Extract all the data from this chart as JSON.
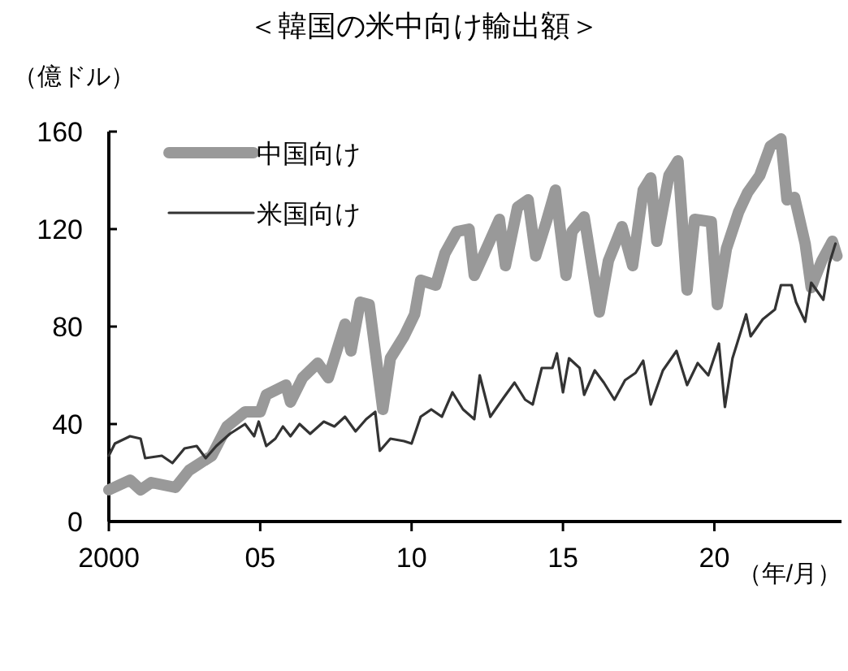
{
  "chart_data": {
    "type": "line",
    "title": "＜韓国の米中向け輸出額＞",
    "ylabel": "（億ドル）",
    "xlabel": "（年/月）",
    "xlim": [
      2000,
      2024.2
    ],
    "xticks": [
      {
        "value": 2000,
        "label": "2000"
      },
      {
        "value": 2005,
        "label": "05"
      },
      {
        "value": 2010,
        "label": "10"
      },
      {
        "value": 2015,
        "label": "15"
      },
      {
        "value": 2020,
        "label": "20"
      }
    ],
    "ylim": [
      0,
      160
    ],
    "yticks": [
      0,
      40,
      80,
      120,
      160
    ],
    "grid": false,
    "legend": "top left",
    "line_style": "solid",
    "series": [
      {
        "name": "中国向け",
        "color": "#999999",
        "x": [
          2000.0,
          2000.7,
          2001.05,
          2001.4,
          2002.2,
          2002.65,
          2003.4,
          2003.9,
          2004.5,
          2005.0,
          2005.2,
          2005.85,
          2006.0,
          2006.4,
          2006.9,
          2007.25,
          2007.45,
          2007.8,
          2008.0,
          2008.3,
          2008.6,
          2008.8,
          2009.05,
          2009.3,
          2009.75,
          2010.1,
          2010.3,
          2010.8,
          2011.1,
          2011.5,
          2011.9,
          2012.07,
          2012.4,
          2012.9,
          2013.1,
          2013.5,
          2013.85,
          2014.1,
          2014.45,
          2014.75,
          2015.1,
          2015.3,
          2015.7,
          2016.2,
          2016.5,
          2016.95,
          2017.3,
          2017.65,
          2017.9,
          2018.1,
          2018.5,
          2018.8,
          2019.1,
          2019.35,
          2019.9,
          2020.1,
          2020.4,
          2020.8,
          2021.1,
          2021.5,
          2021.85,
          2022.2,
          2022.4,
          2022.65,
          2023.0,
          2023.2,
          2023.55,
          2023.9,
          2024.05
        ],
        "values": [
          13,
          17,
          13,
          16,
          14,
          21,
          27,
          39,
          45,
          45,
          52,
          56,
          49,
          59,
          65,
          59,
          67,
          81,
          70,
          90,
          89,
          70,
          46,
          67,
          76,
          85,
          99,
          97,
          110,
          119,
          120,
          101,
          110,
          124,
          105,
          129,
          132,
          109,
          123,
          136,
          101,
          119,
          125,
          86,
          107,
          121,
          105,
          136,
          141,
          115,
          142,
          148,
          95,
          124,
          123,
          89,
          112,
          127,
          135,
          142,
          154,
          157,
          132,
          133,
          114,
          96,
          107,
          115,
          109
        ]
      },
      {
        "name": "米国向け",
        "color": "#333333",
        "x": [
          2000.0,
          2000.2,
          2000.7,
          2001.05,
          2001.2,
          2001.75,
          2002.1,
          2002.5,
          2002.9,
          2003.2,
          2003.55,
          2004.0,
          2004.5,
          2004.8,
          2004.95,
          2005.2,
          2005.5,
          2005.75,
          2006.0,
          2006.3,
          2006.65,
          2007.1,
          2007.45,
          2007.8,
          2008.15,
          2008.5,
          2008.8,
          2008.95,
          2009.3,
          2009.75,
          2010.0,
          2010.3,
          2010.65,
          2011.0,
          2011.35,
          2011.7,
          2012.07,
          2012.25,
          2012.6,
          2013.05,
          2013.4,
          2013.75,
          2014.0,
          2014.3,
          2014.65,
          2014.8,
          2015.0,
          2015.2,
          2015.55,
          2015.7,
          2016.05,
          2016.35,
          2016.7,
          2017.05,
          2017.4,
          2017.65,
          2017.9,
          2018.3,
          2018.75,
          2019.1,
          2019.45,
          2019.8,
          2020.15,
          2020.35,
          2020.6,
          2021.05,
          2021.2,
          2021.6,
          2022.0,
          2022.2,
          2022.55,
          2022.7,
          2023.0,
          2023.2,
          2023.6,
          2023.8,
          2024.0
        ],
        "values": [
          27,
          32,
          35,
          34,
          26,
          27,
          24,
          30,
          31,
          26,
          31,
          36,
          40,
          35,
          41,
          31,
          34,
          39,
          35,
          40,
          36,
          41,
          39,
          43,
          37,
          42,
          45,
          29,
          34,
          33,
          32,
          43,
          46,
          43,
          53,
          46,
          42,
          60,
          43,
          51,
          57,
          50,
          48,
          63,
          63,
          69,
          53,
          67,
          63,
          52,
          62,
          57,
          50,
          58,
          61,
          66,
          48,
          62,
          70,
          56,
          65,
          60,
          73,
          47,
          67,
          85,
          76,
          83,
          87,
          97,
          97,
          90,
          82,
          98,
          91,
          106,
          114
        ]
      }
    ]
  }
}
